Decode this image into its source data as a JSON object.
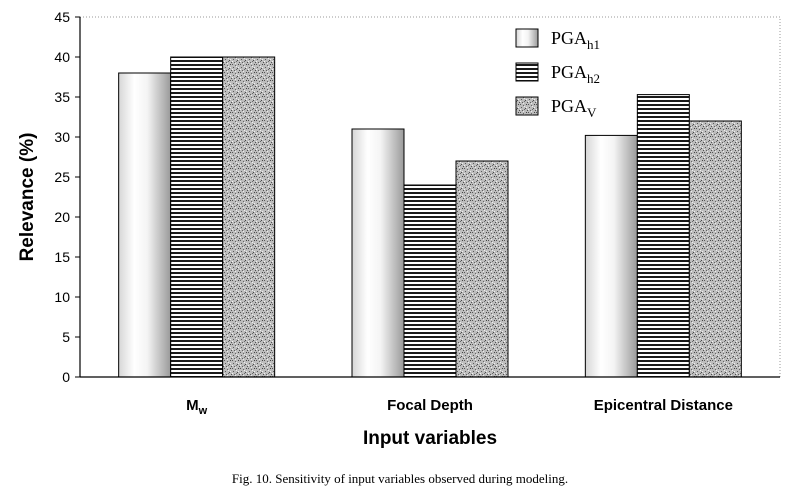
{
  "chart_data": {
    "type": "bar",
    "categories": [
      {
        "main": "M",
        "sub": "w"
      },
      {
        "main": "Focal Depth",
        "sub": ""
      },
      {
        "main": "Epicentral Distance",
        "sub": ""
      }
    ],
    "series": [
      {
        "name": {
          "main": "PGA",
          "sub": "h1"
        },
        "pattern": "cylinder",
        "values": [
          38,
          31,
          30.2
        ]
      },
      {
        "name": {
          "main": "PGA",
          "sub": "h2"
        },
        "pattern": "hstripes",
        "values": [
          40,
          24,
          35.3
        ]
      },
      {
        "name": {
          "main": "PGA",
          "sub": "V"
        },
        "pattern": "speckle",
        "values": [
          40,
          27,
          32
        ]
      }
    ],
    "xlabel": "Input variables",
    "ylabel": "Relevance (%)",
    "ylim": [
      0,
      45
    ],
    "yticks": [
      0,
      5,
      10,
      15,
      20,
      25,
      30,
      35,
      40,
      45
    ],
    "grid": false,
    "legend": "top-right",
    "caption": "Fig. 10. Sensitivity of input variables observed during modeling."
  }
}
